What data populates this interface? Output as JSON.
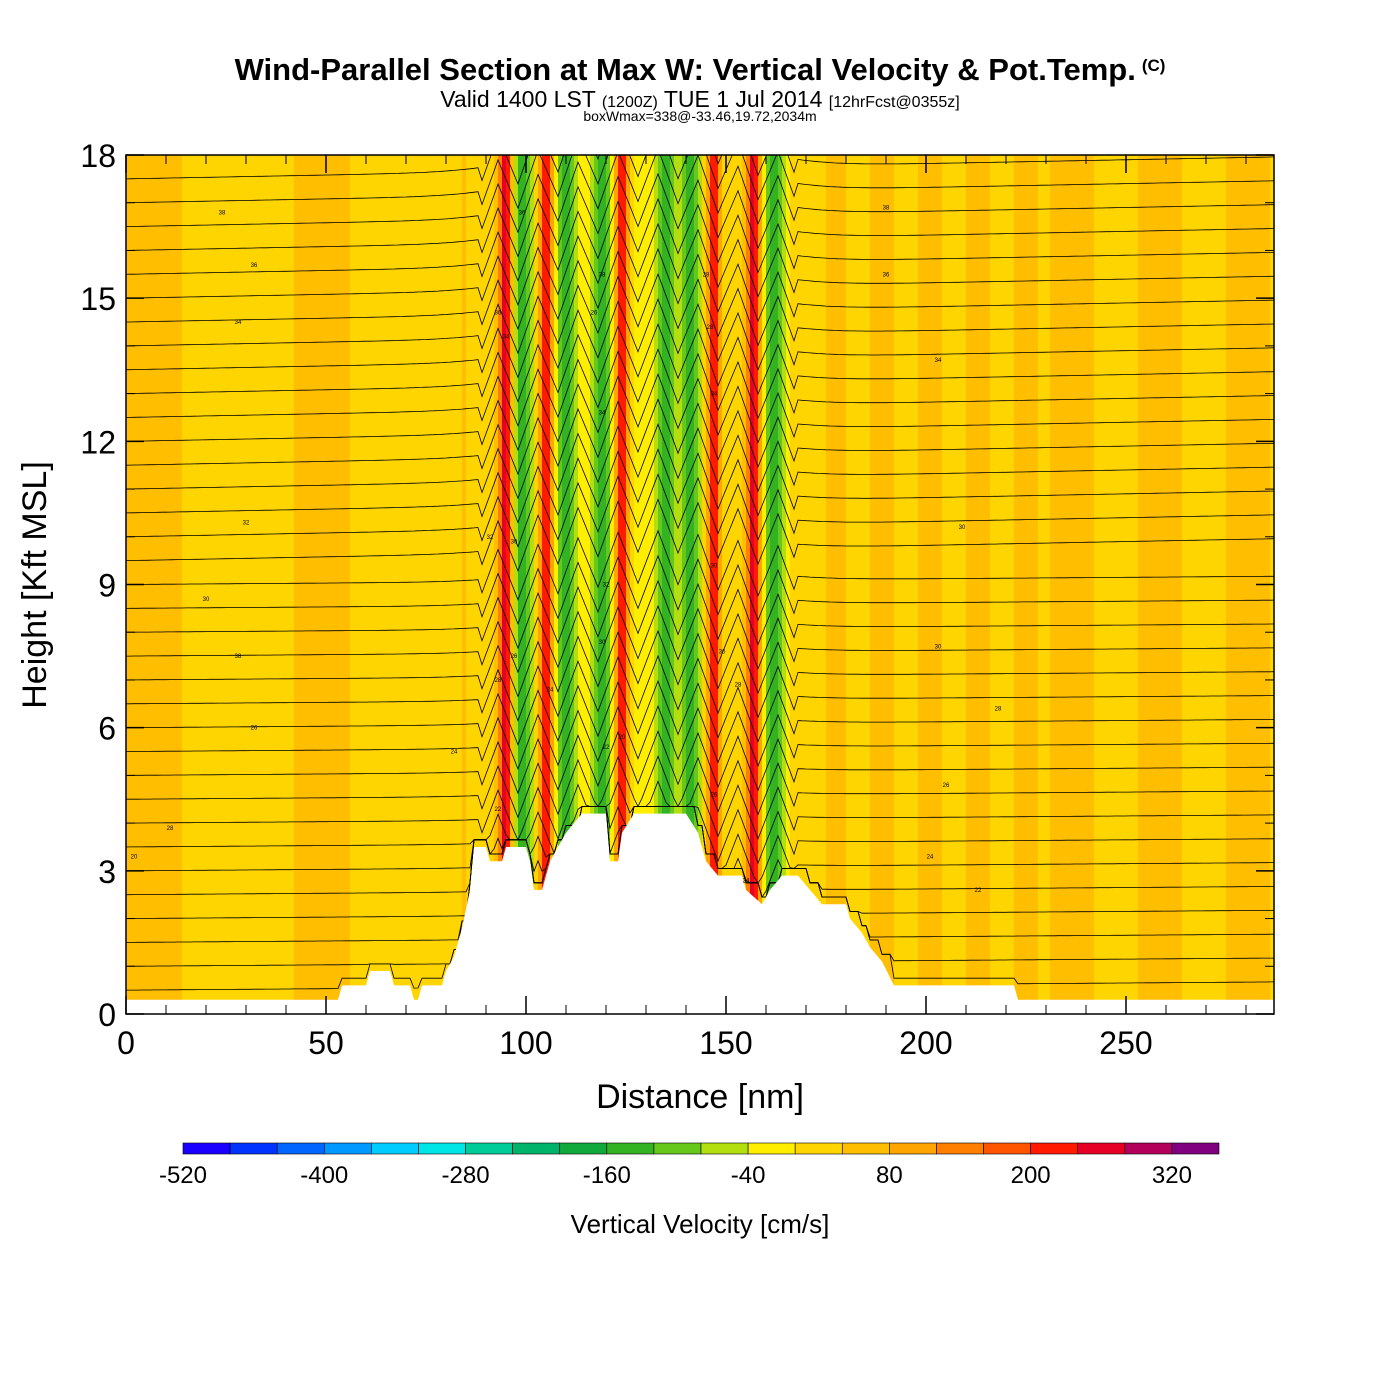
{
  "title": "Wind-Parallel Section at Max W: Vertical Velocity & Pot.Temp.",
  "copyright_mark": "(C)",
  "subtitle": {
    "valid": "Valid 1400 LST",
    "zulu": "(1200Z)",
    "date": "TUE 1 Jul 2014",
    "forecast": "[12hrFcst@0355z]"
  },
  "subline": "boxWmax=338@-33.46,19.72,2034m",
  "chart_data": {
    "type": "heatmap",
    "title": "Wind-Parallel Section at Max W: Vertical Velocity & Pot.Temp.",
    "xlabel": "Distance [nm]",
    "ylabel": "Height [Kft MSL]",
    "xlim": [
      0,
      287
    ],
    "ylim": [
      0,
      18
    ],
    "x_ticks": [
      "0",
      "50",
      "100",
      "150",
      "200",
      "250"
    ],
    "y_ticks": [
      "0",
      "3",
      "6",
      "9",
      "12",
      "15",
      "18"
    ],
    "grid": false,
    "updraft_bands_x": [
      95,
      105,
      124,
      147,
      157
    ],
    "downdraft_bands_x": [
      99,
      110,
      119,
      135,
      141,
      162
    ],
    "terrain_profile": [
      [
        0,
        0.3
      ],
      [
        53,
        0.3
      ],
      [
        54,
        0.6
      ],
      [
        60,
        0.6
      ],
      [
        61,
        0.9
      ],
      [
        66,
        0.9
      ],
      [
        67,
        0.6
      ],
      [
        71,
        0.6
      ],
      [
        72,
        0.3
      ],
      [
        73,
        0.3
      ],
      [
        74,
        0.6
      ],
      [
        79,
        0.6
      ],
      [
        80,
        0.9
      ],
      [
        82,
        1.2
      ],
      [
        84,
        1.8
      ],
      [
        86,
        2.6
      ],
      [
        87,
        3.5
      ],
      [
        90,
        3.5
      ],
      [
        91,
        3.2
      ],
      [
        94,
        3.2
      ],
      [
        95,
        3.5
      ],
      [
        100,
        3.5
      ],
      [
        101,
        3.2
      ],
      [
        102,
        2.6
      ],
      [
        104,
        2.6
      ],
      [
        105,
        2.9
      ],
      [
        106,
        3.2
      ],
      [
        108,
        3.5
      ],
      [
        110,
        3.8
      ],
      [
        114,
        4.2
      ],
      [
        120,
        4.2
      ],
      [
        121,
        3.2
      ],
      [
        123,
        3.2
      ],
      [
        124,
        3.8
      ],
      [
        127,
        4.2
      ],
      [
        140,
        4.2
      ],
      [
        143,
        3.8
      ],
      [
        145,
        3.2
      ],
      [
        148,
        2.9
      ],
      [
        154,
        2.9
      ],
      [
        155,
        2.6
      ],
      [
        159,
        2.3
      ],
      [
        161,
        2.6
      ],
      [
        164,
        2.9
      ],
      [
        168,
        2.9
      ],
      [
        171,
        2.6
      ],
      [
        174,
        2.3
      ],
      [
        180,
        2.3
      ],
      [
        181,
        2.0
      ],
      [
        184,
        1.7
      ],
      [
        186,
        1.4
      ],
      [
        189,
        1.1
      ],
      [
        192,
        0.6
      ],
      [
        222,
        0.6
      ],
      [
        223,
        0.3
      ],
      [
        287,
        0.3
      ]
    ],
    "theta_contours_K": [
      20,
      22,
      24,
      26,
      28,
      30,
      32,
      34,
      36,
      38
    ],
    "theta_labels": [
      {
        "text": "38",
        "x": 24,
        "y": 16.8
      },
      {
        "text": "36",
        "x": 32,
        "y": 15.7
      },
      {
        "text": "34",
        "x": 28,
        "y": 14.5
      },
      {
        "text": "32",
        "x": 30,
        "y": 10.3
      },
      {
        "text": "30",
        "x": 20,
        "y": 8.7
      },
      {
        "text": "38",
        "x": 28,
        "y": 7.5
      },
      {
        "text": "26",
        "x": 32,
        "y": 6.0
      },
      {
        "text": "24",
        "x": 82,
        "y": 5.5
      },
      {
        "text": "22",
        "x": 93,
        "y": 4.3
      },
      {
        "text": "28",
        "x": 11,
        "y": 3.9
      },
      {
        "text": "20",
        "x": 2,
        "y": 3.3
      },
      {
        "text": "36",
        "x": 99,
        "y": 16.8
      },
      {
        "text": "38",
        "x": 119,
        "y": 15.5
      },
      {
        "text": "28",
        "x": 145,
        "y": 15.5
      },
      {
        "text": "36",
        "x": 93,
        "y": 14.7
      },
      {
        "text": "26",
        "x": 117,
        "y": 14.7
      },
      {
        "text": "34",
        "x": 95,
        "y": 14.2
      },
      {
        "text": "28",
        "x": 146,
        "y": 14.4
      },
      {
        "text": "34",
        "x": 147,
        "y": 13.0
      },
      {
        "text": "34",
        "x": 119,
        "y": 12.6
      },
      {
        "text": "30",
        "x": 97,
        "y": 9.9
      },
      {
        "text": "32",
        "x": 91,
        "y": 10.0
      },
      {
        "text": "32",
        "x": 120,
        "y": 9.0
      },
      {
        "text": "30",
        "x": 147,
        "y": 9.4
      },
      {
        "text": "30",
        "x": 119,
        "y": 7.8
      },
      {
        "text": "30",
        "x": 149,
        "y": 7.6
      },
      {
        "text": "26",
        "x": 97,
        "y": 7.5
      },
      {
        "text": "28",
        "x": 93,
        "y": 7.0
      },
      {
        "text": "24",
        "x": 106,
        "y": 6.8
      },
      {
        "text": "28",
        "x": 153,
        "y": 6.9
      },
      {
        "text": "20",
        "x": 124,
        "y": 5.8
      },
      {
        "text": "22",
        "x": 120,
        "y": 5.6
      },
      {
        "text": "26",
        "x": 147,
        "y": 4.6
      },
      {
        "text": "24",
        "x": 155,
        "y": 2.8
      },
      {
        "text": "38",
        "x": 190,
        "y": 16.9
      },
      {
        "text": "36",
        "x": 190,
        "y": 15.5
      },
      {
        "text": "34",
        "x": 203,
        "y": 13.7
      },
      {
        "text": "30",
        "x": 209,
        "y": 10.2
      },
      {
        "text": "30",
        "x": 203,
        "y": 7.7
      },
      {
        "text": "28",
        "x": 218,
        "y": 6.4
      },
      {
        "text": "26",
        "x": 205,
        "y": 4.8
      },
      {
        "text": "24",
        "x": 201,
        "y": 3.3
      },
      {
        "text": "22",
        "x": 213,
        "y": 2.6
      }
    ]
  },
  "colorbar": {
    "title": "Vertical Velocity [cm/s]",
    "colors": [
      "#1a00ff",
      "#0033ff",
      "#0066ff",
      "#0099ff",
      "#00ccff",
      "#00e5e5",
      "#00cc99",
      "#00b36b",
      "#11a83c",
      "#33b322",
      "#66c81a",
      "#b3df10",
      "#ffee00",
      "#ffd500",
      "#ffbe00",
      "#ffa500",
      "#ff7f00",
      "#ff5500",
      "#ff1a00",
      "#e60026",
      "#b3005a",
      "#80007f"
    ],
    "labels": [
      "-520",
      "-400",
      "-280",
      "-160",
      "-40",
      "80",
      "200",
      "320"
    ],
    "label_bin_index": [
      0,
      3,
      6,
      9,
      12,
      15,
      18,
      21
    ]
  }
}
